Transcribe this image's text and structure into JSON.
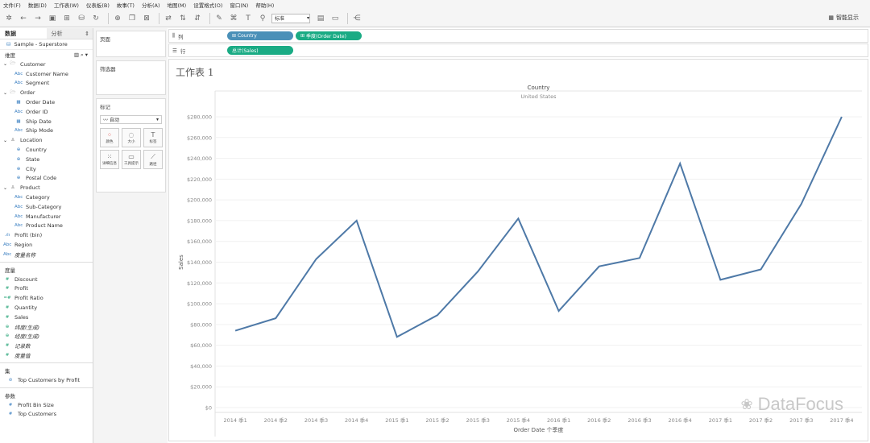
{
  "menu": [
    "文件(F)",
    "数据(D)",
    "工作表(W)",
    "仪表板(B)",
    "故事(T)",
    "分析(A)",
    "地图(M)",
    "设置格式(O)",
    "窗口(N)",
    "帮助(H)"
  ],
  "toolbar": {
    "fit_select": "标准",
    "smart_show": "智能显示"
  },
  "datapane": {
    "tab_data": "数据",
    "tab_analysis": "分析",
    "datasource": "Sample - Superstore",
    "dimensions_label": "维度",
    "measures_label": "度量",
    "sets_label": "集",
    "params_label": "参数",
    "dimensions": [
      {
        "label": "Customer",
        "type": "folder",
        "indent": 0
      },
      {
        "label": "Customer Name",
        "type": "abc",
        "indent": 1
      },
      {
        "label": "Segment",
        "type": "abc",
        "indent": 1
      },
      {
        "label": "Order",
        "type": "folder",
        "indent": 0
      },
      {
        "label": "Order Date",
        "type": "date",
        "indent": 1
      },
      {
        "label": "Order ID",
        "type": "abc",
        "indent": 1
      },
      {
        "label": "Ship Date",
        "type": "date",
        "indent": 1
      },
      {
        "label": "Ship Mode",
        "type": "abc",
        "indent": 1
      },
      {
        "label": "Location",
        "type": "hier",
        "indent": 0
      },
      {
        "label": "Country",
        "type": "geo",
        "indent": 1
      },
      {
        "label": "State",
        "type": "geo",
        "indent": 1
      },
      {
        "label": "City",
        "type": "geo",
        "indent": 1
      },
      {
        "label": "Postal Code",
        "type": "geo",
        "indent": 1
      },
      {
        "label": "Product",
        "type": "hier",
        "indent": 0
      },
      {
        "label": "Category",
        "type": "abc",
        "indent": 1
      },
      {
        "label": "Sub-Category",
        "type": "abc",
        "indent": 1
      },
      {
        "label": "Manufacturer",
        "type": "abc",
        "indent": 1
      },
      {
        "label": "Product Name",
        "type": "abc",
        "indent": 1
      },
      {
        "label": "Profit (bin)",
        "type": "bin",
        "indent": 0
      },
      {
        "label": "Region",
        "type": "abc",
        "indent": 0
      },
      {
        "label": "度量名称",
        "type": "abc",
        "indent": 0,
        "italic": true
      }
    ],
    "measures": [
      {
        "label": "Discount",
        "type": "num"
      },
      {
        "label": "Profit",
        "type": "num"
      },
      {
        "label": "Profit Ratio",
        "type": "calc"
      },
      {
        "label": "Quantity",
        "type": "num"
      },
      {
        "label": "Sales",
        "type": "num"
      },
      {
        "label": "纬度(生成)",
        "type": "geo",
        "italic": true
      },
      {
        "label": "经度(生成)",
        "type": "geo",
        "italic": true
      },
      {
        "label": "记录数",
        "type": "num",
        "italic": true
      },
      {
        "label": "度量值",
        "type": "num",
        "italic": true
      }
    ],
    "sets": [
      "Top Customers by Profit"
    ],
    "params": [
      "Profit Bin Size",
      "Top Customers"
    ]
  },
  "cards": {
    "pages": "页面",
    "filters": "筛选器",
    "marks": "标记",
    "marks_type": "自动",
    "mark_buttons": [
      "颜色",
      "大小",
      "标签",
      "详细信息",
      "工具提示",
      "路径"
    ]
  },
  "shelves": {
    "columns_label": "列",
    "rows_label": "行",
    "columns_pills": [
      "Country",
      "季度(Order Date)"
    ],
    "rows_pills": [
      "总计(Sales)"
    ]
  },
  "sheet": {
    "title": "工作表 1",
    "watermark": "DataFocus"
  },
  "chart_data": {
    "type": "line",
    "header_title": "Country",
    "header_value": "United States",
    "xlabel": "Order Date 个季度",
    "ylabel": "Sales",
    "ylim": [
      0,
      280000
    ],
    "yticks": [
      "$0",
      "$20,000",
      "$40,000",
      "$60,000",
      "$80,000",
      "$100,000",
      "$120,000",
      "$140,000",
      "$160,000",
      "$180,000",
      "$200,000",
      "$220,000",
      "$240,000",
      "$260,000",
      "$280,000"
    ],
    "categories": [
      "2014 季1",
      "2014 季2",
      "2014 季3",
      "2014 季4",
      "2015 季1",
      "2015 季2",
      "2015 季3",
      "2015 季4",
      "2016 季1",
      "2016 季2",
      "2016 季3",
      "2016 季4",
      "2017 季1",
      "2017 季2",
      "2017 季3",
      "2017 季4"
    ],
    "values": [
      74000,
      86000,
      143000,
      180000,
      68000,
      89000,
      131000,
      182000,
      93000,
      136000,
      144000,
      235000,
      123000,
      133000,
      196000,
      280000
    ],
    "line_color": "#4e79a7"
  }
}
